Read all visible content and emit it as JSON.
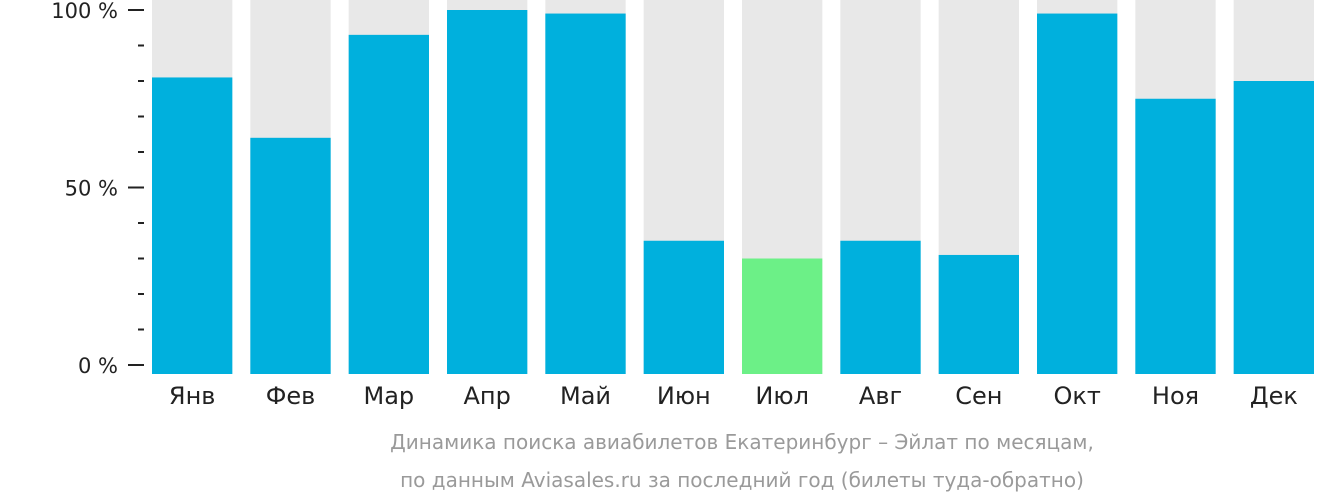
{
  "chart_data": {
    "type": "bar",
    "categories": [
      "Янв",
      "Фев",
      "Мар",
      "Апр",
      "Май",
      "Июн",
      "Июл",
      "Авг",
      "Сен",
      "Окт",
      "Ноя",
      "Дек"
    ],
    "values": [
      81,
      64,
      93,
      100,
      99,
      35,
      30,
      35,
      31,
      99,
      75,
      80
    ],
    "highlight_index": 6,
    "ylim": [
      0,
      100
    ],
    "y_tick_labels": [
      {
        "value": 0,
        "label": "0 %"
      },
      {
        "value": 50,
        "label": "50 %"
      },
      {
        "value": 100,
        "label": "100 %"
      }
    ],
    "minor_tick_step": 10,
    "caption_lines": [
      "Динамика поиска авиабилетов Екатеринбург – Эйлат по месяцам,",
      "по данным Aviasales.ru за последний год (билеты туда-обратно)"
    ],
    "colors": {
      "bar": "#00b0dd",
      "highlight": "#6cf087",
      "background_bar": "#e8e8e8",
      "axis": "#222222"
    }
  }
}
